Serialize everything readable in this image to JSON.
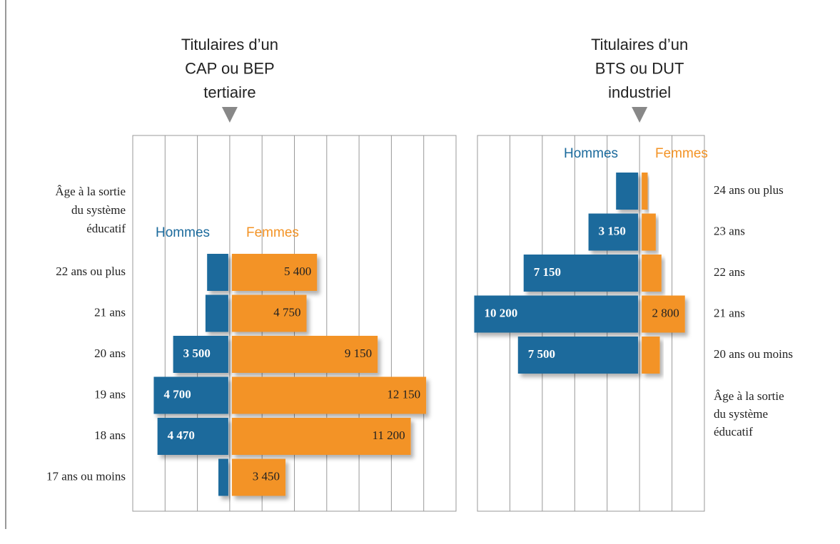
{
  "chart_data": [
    {
      "type": "pyramid",
      "title": [
        "Titulaires d’un",
        "CAP ou BEP",
        "tertiaire"
      ],
      "axis_label": [
        "Âge à la sortie",
        "du système",
        "éducatif"
      ],
      "categories": [
        "22 ans ou plus",
        "21 ans",
        "20 ans",
        "19 ans",
        "18 ans",
        "17 ans ou moins"
      ],
      "series": [
        {
          "name": "Hommes",
          "color": "#1b6a9c",
          "values": [
            1400,
            1500,
            3500,
            4700,
            4470,
            700
          ],
          "value_labels": [
            null,
            null,
            "3 500",
            "4 700",
            "4 470",
            null
          ]
        },
        {
          "name": "Femmes",
          "color": "#f39325",
          "values": [
            5400,
            4750,
            9150,
            12150,
            11200,
            3450
          ],
          "value_labels": [
            "5 400",
            "4 750",
            "9 150",
            "12 150",
            "11 200",
            "3 450"
          ]
        }
      ],
      "xlim": [
        -6000,
        14000
      ],
      "xticks": [
        -6000,
        -4000,
        -2000,
        0,
        2000,
        4000,
        6000,
        8000,
        10000,
        12000,
        14000
      ],
      "grid": true
    },
    {
      "type": "pyramid",
      "title": [
        "Titulaires d’un",
        "BTS ou DUT",
        "industriel"
      ],
      "axis_label": [
        "Âge à la sortie",
        "du système",
        "éducatif"
      ],
      "categories": [
        "24 ans ou plus",
        "23 ans",
        "22 ans",
        "21 ans",
        "20 ans ou moins"
      ],
      "series": [
        {
          "name": "Hommes",
          "color": "#1b6a9c",
          "values": [
            1450,
            3150,
            7150,
            10200,
            7500
          ],
          "value_labels": [
            null,
            "3 150",
            "7 150",
            "10 200",
            "7 500"
          ]
        },
        {
          "name": "Femmes",
          "color": "#f39325",
          "values": [
            500,
            1000,
            1350,
            2800,
            1250
          ],
          "value_labels": [
            null,
            null,
            null,
            "2 800",
            null
          ]
        }
      ],
      "xlim": [
        -10000,
        4000
      ],
      "xticks": [
        -10000,
        -8000,
        -6000,
        -4000,
        -2000,
        0,
        2000,
        4000
      ],
      "grid": true
    }
  ]
}
